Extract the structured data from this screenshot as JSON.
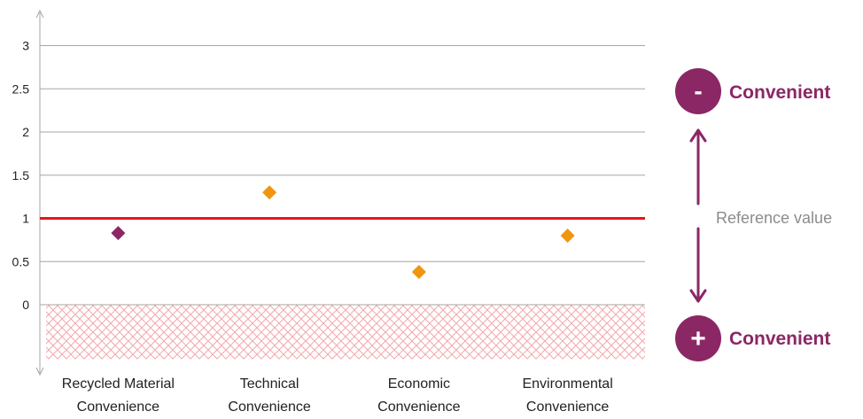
{
  "chart_data": {
    "type": "scatter",
    "title": "",
    "xlabel": "",
    "ylabel": "",
    "ylim": [
      -0.65,
      3.4
    ],
    "grid": true,
    "yticks": [
      0,
      0.5,
      1,
      1.5,
      2,
      2.5,
      3
    ],
    "ytick_labels": [
      "0",
      "0.5",
      "1",
      "1.5",
      "2",
      "2.5",
      "3"
    ],
    "categories": [
      [
        "Recycled Material",
        "Convenience"
      ],
      [
        "Technical",
        "Convenience"
      ],
      [
        "Economic",
        "Convenience"
      ],
      [
        "Environmental",
        "Convenience"
      ]
    ],
    "points": [
      {
        "value": 0.83,
        "color": "#8b2765"
      },
      {
        "value": 1.3,
        "color": "#f0960e"
      },
      {
        "value": 0.38,
        "color": "#f0960e"
      },
      {
        "value": 0.8,
        "color": "#f0960e"
      }
    ],
    "reference_line": {
      "value": 1,
      "color": "#e8141b"
    },
    "negative_region": {
      "from": 0,
      "to": -0.65,
      "pattern_color": "#f4a7aa"
    }
  },
  "annotation": {
    "reference_label": "Reference value",
    "top": {
      "symbol": "-",
      "label": "Convenient"
    },
    "bottom": {
      "symbol": "+",
      "label": "Convenient"
    },
    "color": "#8b2765",
    "text_color": "#8c8c8c"
  },
  "colors": {
    "grid": "#a6a6a6",
    "axis": "#a6a6a6",
    "tick_text": "#222222"
  }
}
